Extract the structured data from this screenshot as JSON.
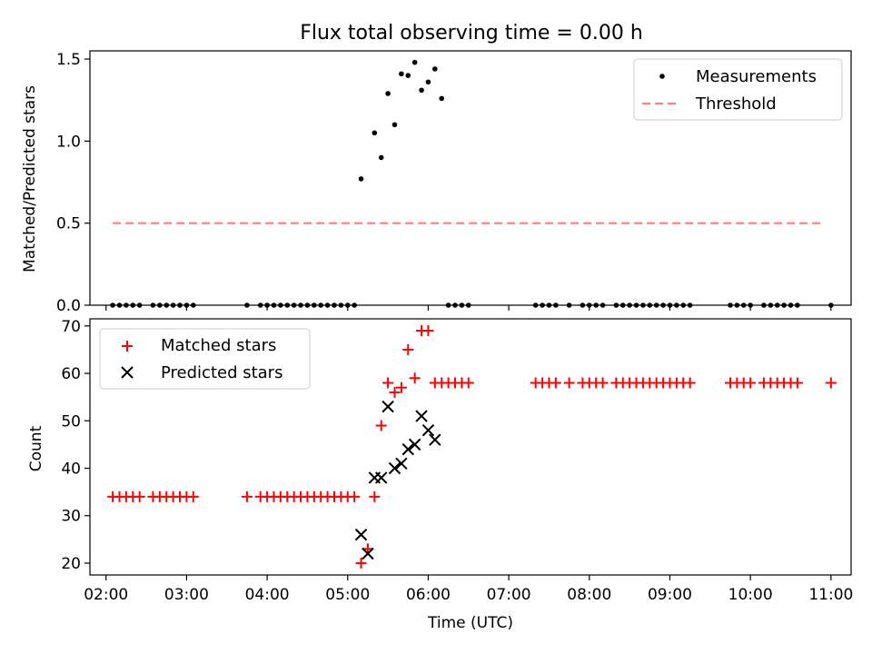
{
  "chart_data": [
    {
      "type": "scatter",
      "title": "Flux total observing time = 0.00 h",
      "xlabel": "",
      "ylabel": "Matched/Predicted stars",
      "xlim": [
        "01:48",
        "11:15"
      ],
      "ylim": [
        0,
        1.55
      ],
      "yticks": [
        "0.0",
        "0.5",
        "1.0",
        "1.5"
      ],
      "grid": false,
      "legend_position": "upper right",
      "series": [
        {
          "name": "Measurements",
          "color": "#000000",
          "marker": "dot",
          "x": [
            "02:05",
            "02:10",
            "02:15",
            "02:20",
            "02:25",
            "02:35",
            "02:40",
            "02:45",
            "02:50",
            "02:55",
            "03:00",
            "03:05",
            "03:45",
            "03:55",
            "04:00",
            "04:05",
            "04:10",
            "04:15",
            "04:20",
            "04:25",
            "04:30",
            "04:35",
            "04:40",
            "04:45",
            "04:50",
            "04:55",
            "05:00",
            "05:05",
            "05:10",
            "05:20",
            "05:25",
            "05:30",
            "05:35",
            "05:40",
            "05:45",
            "05:50",
            "05:55",
            "06:00",
            "06:05",
            "06:10",
            "06:15",
            "06:20",
            "06:25",
            "06:30",
            "07:20",
            "07:25",
            "07:30",
            "07:35",
            "07:45",
            "07:55",
            "08:00",
            "08:05",
            "08:10",
            "08:20",
            "08:25",
            "08:30",
            "08:35",
            "08:40",
            "08:45",
            "08:50",
            "08:55",
            "09:00",
            "09:05",
            "09:10",
            "09:15",
            "09:45",
            "09:50",
            "09:55",
            "10:00",
            "10:10",
            "10:15",
            "10:20",
            "10:25",
            "10:30",
            "10:35",
            "11:00"
          ],
          "y": [
            0,
            0,
            0,
            0,
            0,
            0,
            0,
            0,
            0,
            0,
            0,
            0,
            0,
            0,
            0,
            0,
            0,
            0,
            0,
            0,
            0,
            0,
            0,
            0,
            0,
            0,
            0,
            0,
            0.77,
            1.05,
            0.9,
            1.29,
            1.1,
            1.41,
            1.4,
            1.48,
            1.31,
            1.36,
            1.44,
            1.26,
            0,
            0,
            0,
            0,
            0,
            0,
            0,
            0,
            0,
            0,
            0,
            0,
            0,
            0,
            0,
            0,
            0,
            0,
            0,
            0,
            0,
            0,
            0,
            0,
            0,
            0,
            0,
            0,
            0,
            0,
            0,
            0,
            0,
            0,
            0,
            0
          ]
        },
        {
          "name": "Threshold",
          "color": "#ff7f7f",
          "style": "dashed",
          "x": [
            "02:05",
            "10:55"
          ],
          "y": [
            0.5,
            0.5
          ]
        }
      ]
    },
    {
      "type": "scatter",
      "title": "",
      "xlabel": "Time (UTC)",
      "ylabel": "Count",
      "xlim": [
        "01:48",
        "11:15"
      ],
      "ylim": [
        17.5,
        71.5
      ],
      "yticks": [
        "20",
        "30",
        "40",
        "50",
        "60",
        "70"
      ],
      "xticks": [
        "02:00",
        "03:00",
        "04:00",
        "05:00",
        "06:00",
        "07:00",
        "08:00",
        "09:00",
        "10:00",
        "11:00"
      ],
      "grid": false,
      "legend_position": "upper left",
      "series": [
        {
          "name": "Matched stars",
          "color": "#ff0000",
          "marker": "plus",
          "x": [
            "02:05",
            "02:10",
            "02:15",
            "02:20",
            "02:25",
            "02:35",
            "02:40",
            "02:45",
            "02:50",
            "02:55",
            "03:00",
            "03:05",
            "03:45",
            "03:55",
            "04:00",
            "04:05",
            "04:10",
            "04:15",
            "04:20",
            "04:25",
            "04:30",
            "04:35",
            "04:40",
            "04:45",
            "04:50",
            "04:55",
            "05:00",
            "05:05",
            "05:10",
            "05:15",
            "05:20",
            "05:25",
            "05:30",
            "05:35",
            "05:40",
            "05:45",
            "05:50",
            "05:55",
            "06:00",
            "06:05",
            "06:10",
            "06:15",
            "06:20",
            "06:25",
            "06:30",
            "07:20",
            "07:25",
            "07:30",
            "07:35",
            "07:45",
            "07:55",
            "08:00",
            "08:05",
            "08:10",
            "08:20",
            "08:25",
            "08:30",
            "08:35",
            "08:40",
            "08:45",
            "08:50",
            "08:55",
            "09:00",
            "09:05",
            "09:10",
            "09:15",
            "09:45",
            "09:50",
            "09:55",
            "10:00",
            "10:10",
            "10:15",
            "10:20",
            "10:25",
            "10:30",
            "10:35",
            "11:00"
          ],
          "y": [
            34,
            34,
            34,
            34,
            34,
            34,
            34,
            34,
            34,
            34,
            34,
            34,
            34,
            34,
            34,
            34,
            34,
            34,
            34,
            34,
            34,
            34,
            34,
            34,
            34,
            34,
            34,
            34,
            20,
            23,
            34,
            49,
            58,
            56,
            57,
            65,
            59,
            69,
            69,
            58,
            58,
            58,
            58,
            58,
            58,
            58,
            58,
            58,
            58,
            58,
            58,
            58,
            58,
            58,
            58,
            58,
            58,
            58,
            58,
            58,
            58,
            58,
            58,
            58,
            58,
            58,
            58,
            58,
            58,
            58,
            58,
            58,
            58,
            58,
            58,
            58,
            58
          ]
        },
        {
          "name": "Predicted stars",
          "color": "#000000",
          "marker": "x",
          "x": [
            "05:10",
            "05:15",
            "05:20",
            "05:25",
            "05:30",
            "05:35",
            "05:40",
            "05:45",
            "05:50",
            "05:55",
            "06:00",
            "06:05"
          ],
          "y": [
            26,
            22,
            38,
            38,
            53,
            40,
            41,
            44,
            45,
            51,
            48,
            46
          ]
        }
      ]
    }
  ]
}
